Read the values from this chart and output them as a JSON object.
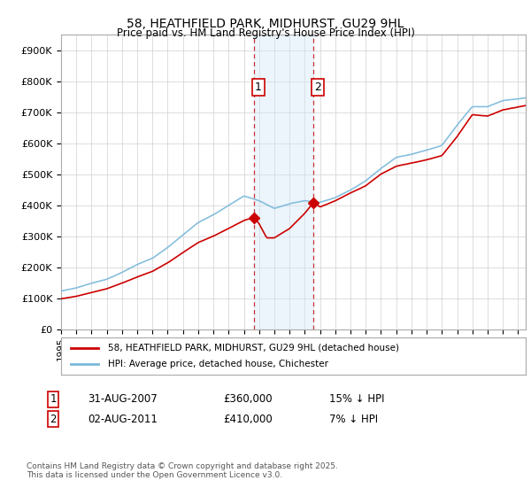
{
  "title": "58, HEATHFIELD PARK, MIDHURST, GU29 9HL",
  "subtitle": "Price paid vs. HM Land Registry's House Price Index (HPI)",
  "legend_line1": "58, HEATHFIELD PARK, MIDHURST, GU29 9HL (detached house)",
  "legend_line2": "HPI: Average price, detached house, Chichester",
  "footer": "Contains HM Land Registry data © Crown copyright and database right 2025.\nThis data is licensed under the Open Government Licence v3.0.",
  "sale1_date": "31-AUG-2007",
  "sale1_price": "£360,000",
  "sale1_hpi": "15% ↓ HPI",
  "sale2_date": "02-AUG-2011",
  "sale2_price": "£410,000",
  "sale2_hpi": "7% ↓ HPI",
  "hpi_color": "#7ab8d9",
  "price_color": "#cc0000",
  "shade_color": "#d0e8f5",
  "ylim_min": 0,
  "ylim_max": 950000,
  "yticks": [
    0,
    100000,
    200000,
    300000,
    400000,
    500000,
    600000,
    700000,
    800000,
    900000
  ],
  "ytick_labels": [
    "£0",
    "£100K",
    "£200K",
    "£300K",
    "£400K",
    "£500K",
    "£600K",
    "£700K",
    "£800K",
    "£900K"
  ],
  "sale1_x": 2007.67,
  "sale2_x": 2011.58,
  "sale1_y": 360000,
  "sale2_y": 410000,
  "shade_x1": 2007.67,
  "shade_x2": 2011.58,
  "xmin": 1995,
  "xmax": 2025.5
}
